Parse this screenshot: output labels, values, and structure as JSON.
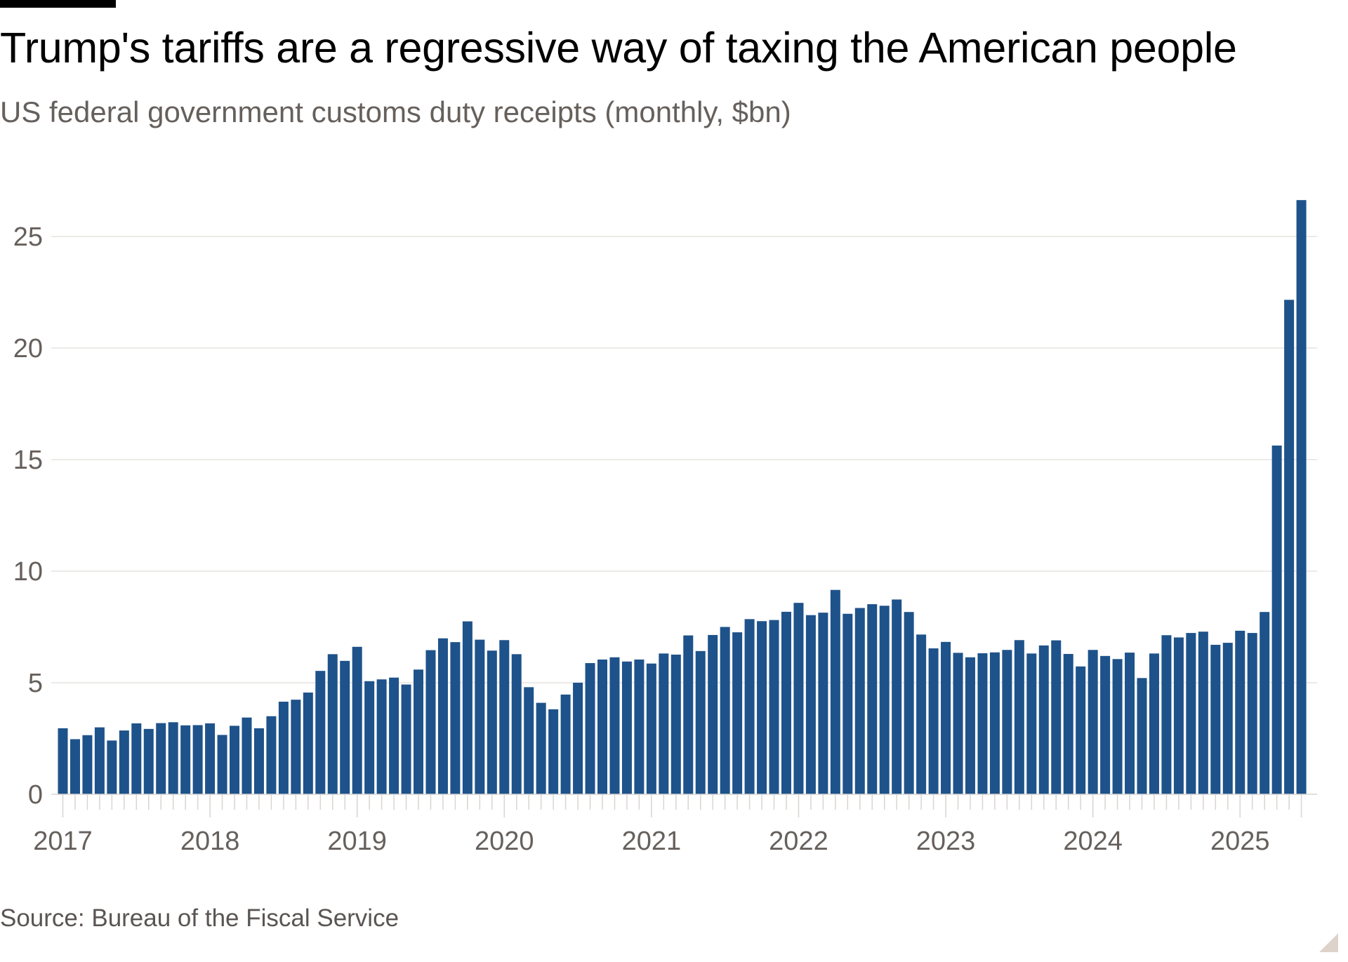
{
  "header": {
    "title": "Trump's tariffs are a regressive way of taxing the American people",
    "subtitle": "US federal government customs duty receipts (monthly, $bn)"
  },
  "footer": {
    "source": "Source: Bureau of the Fiscal Service"
  },
  "colors": {
    "bar": "#1e528a",
    "grid": "#e6e3df",
    "tick": "#d9d5d1",
    "axis_text": "#66605c",
    "accent_bar": "#000000",
    "corner": "#ddd3cb"
  },
  "chart_data": {
    "type": "bar",
    "title": "Trump's tariffs are a regressive way of taxing the American people",
    "subtitle": "US federal government customs duty receipts (monthly, $bn)",
    "xlabel": "",
    "ylabel": "",
    "ylim": [
      0,
      27
    ],
    "yticks": [
      0,
      5,
      10,
      15,
      20,
      25
    ],
    "xtick_labels": [
      "2017",
      "2018",
      "2019",
      "2020",
      "2021",
      "2022",
      "2023",
      "2024",
      "2025"
    ],
    "grid": true,
    "legend": "none",
    "start": "2017-01",
    "end": "2025-06",
    "categories": [
      "2017-01",
      "2017-02",
      "2017-03",
      "2017-04",
      "2017-05",
      "2017-06",
      "2017-07",
      "2017-08",
      "2017-09",
      "2017-10",
      "2017-11",
      "2017-12",
      "2018-01",
      "2018-02",
      "2018-03",
      "2018-04",
      "2018-05",
      "2018-06",
      "2018-07",
      "2018-08",
      "2018-09",
      "2018-10",
      "2018-11",
      "2018-12",
      "2019-01",
      "2019-02",
      "2019-03",
      "2019-04",
      "2019-05",
      "2019-06",
      "2019-07",
      "2019-08",
      "2019-09",
      "2019-10",
      "2019-11",
      "2019-12",
      "2020-01",
      "2020-02",
      "2020-03",
      "2020-04",
      "2020-05",
      "2020-06",
      "2020-07",
      "2020-08",
      "2020-09",
      "2020-10",
      "2020-11",
      "2020-12",
      "2021-01",
      "2021-02",
      "2021-03",
      "2021-04",
      "2021-05",
      "2021-06",
      "2021-07",
      "2021-08",
      "2021-09",
      "2021-10",
      "2021-11",
      "2021-12",
      "2022-01",
      "2022-02",
      "2022-03",
      "2022-04",
      "2022-05",
      "2022-06",
      "2022-07",
      "2022-08",
      "2022-09",
      "2022-10",
      "2022-11",
      "2022-12",
      "2023-01",
      "2023-02",
      "2023-03",
      "2023-04",
      "2023-05",
      "2023-06",
      "2023-07",
      "2023-08",
      "2023-09",
      "2023-10",
      "2023-11",
      "2023-12",
      "2024-01",
      "2024-02",
      "2024-03",
      "2024-04",
      "2024-05",
      "2024-06",
      "2024-07",
      "2024-08",
      "2024-09",
      "2024-10",
      "2024-11",
      "2024-12",
      "2025-01",
      "2025-02",
      "2025-03",
      "2025-04",
      "2025-05",
      "2025-06"
    ],
    "values": [
      2.96,
      2.47,
      2.65,
      3.0,
      2.41,
      2.86,
      3.18,
      2.93,
      3.19,
      3.23,
      3.09,
      3.1,
      3.18,
      2.66,
      3.07,
      3.44,
      2.96,
      3.5,
      4.15,
      4.24,
      4.56,
      5.53,
      6.28,
      5.98,
      6.61,
      5.07,
      5.15,
      5.23,
      4.92,
      5.59,
      6.46,
      6.99,
      6.82,
      7.75,
      6.93,
      6.44,
      6.91,
      6.28,
      4.8,
      4.1,
      3.81,
      4.47,
      5.0,
      5.88,
      6.04,
      6.14,
      5.95,
      6.04,
      5.86,
      6.31,
      6.26,
      7.12,
      6.42,
      7.14,
      7.5,
      7.26,
      7.85,
      7.76,
      7.81,
      8.18,
      8.58,
      8.03,
      8.14,
      9.16,
      8.09,
      8.35,
      8.52,
      8.45,
      8.73,
      8.17,
      7.16,
      6.54,
      6.83,
      6.34,
      6.14,
      6.32,
      6.36,
      6.47,
      6.91,
      6.31,
      6.67,
      6.9,
      6.29,
      5.73,
      6.47,
      6.2,
      6.06,
      6.35,
      5.21,
      6.31,
      7.13,
      7.03,
      7.23,
      7.29,
      6.7,
      6.79,
      7.33,
      7.23,
      8.17,
      15.63,
      22.16,
      26.63
    ]
  }
}
